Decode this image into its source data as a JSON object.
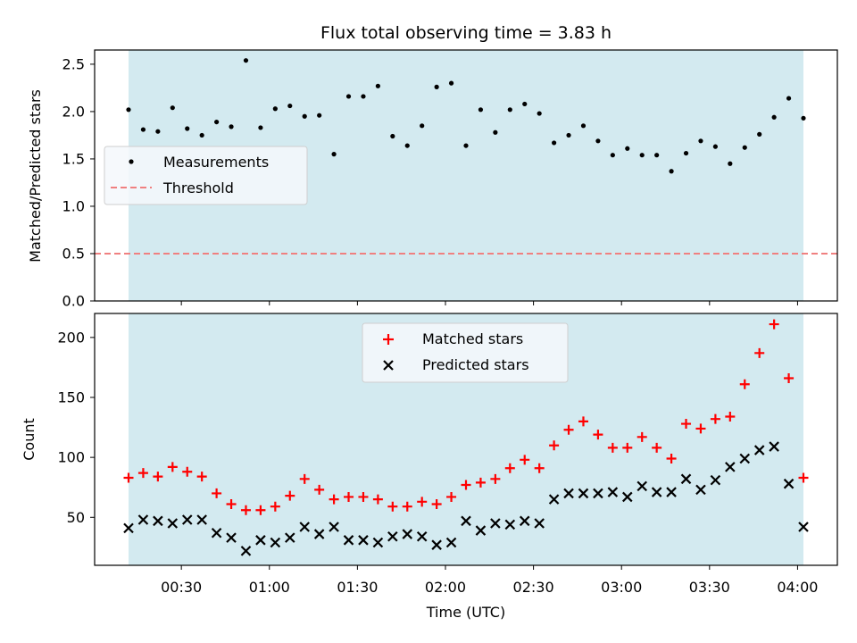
{
  "chart_data": [
    {
      "type": "scatter",
      "title": "Flux total observing time = 3.83 h",
      "ylabel": "Matched/Predicted stars",
      "xlabel": "",
      "ylim": [
        0,
        2.65
      ],
      "yticks": [
        "0.0",
        "0.5",
        "1.0",
        "1.5",
        "2.0",
        "2.5"
      ],
      "grid": false,
      "legend_position": "center-left",
      "observing_window": {
        "start": "00:12",
        "end": "04:02",
        "color": "#d3eaf0"
      },
      "series": [
        {
          "name": "Measurements",
          "color": "#000000",
          "marker": "dot",
          "x": [
            "00:12",
            "00:17",
            "00:22",
            "00:27",
            "00:32",
            "00:37",
            "00:42",
            "00:47",
            "00:52",
            "00:57",
            "01:02",
            "01:07",
            "01:12",
            "01:17",
            "01:22",
            "01:27",
            "01:32",
            "01:37",
            "01:42",
            "01:47",
            "01:52",
            "01:57",
            "02:02",
            "02:07",
            "02:12",
            "02:17",
            "02:22",
            "02:27",
            "02:32",
            "02:37",
            "02:42",
            "02:47",
            "02:52",
            "02:57",
            "03:02",
            "03:07",
            "03:12",
            "03:17",
            "03:22",
            "03:27",
            "03:32",
            "03:37",
            "03:42",
            "03:47",
            "03:52",
            "03:57",
            "04:02"
          ],
          "values": [
            2.02,
            1.81,
            1.79,
            2.04,
            1.82,
            1.75,
            1.89,
            1.84,
            2.54,
            1.83,
            2.03,
            2.06,
            1.95,
            1.96,
            1.55,
            2.16,
            2.16,
            2.27,
            1.74,
            1.64,
            1.85,
            2.26,
            2.3,
            1.64,
            2.02,
            1.78,
            2.02,
            2.08,
            1.98,
            1.67,
            1.75,
            1.85,
            1.69,
            1.54,
            1.61,
            1.54,
            1.54,
            1.37,
            1.56,
            1.69,
            1.63,
            1.45,
            1.62,
            1.76,
            1.94,
            2.14,
            1.93
          ]
        }
      ],
      "threshold": {
        "name": "Threshold",
        "value": 0.5,
        "color": "#f08080",
        "style": "dashed"
      }
    },
    {
      "type": "scatter",
      "title": "",
      "xlabel": "Time (UTC)",
      "ylabel": "Count",
      "ylim": [
        10,
        220
      ],
      "yticks": [
        "50",
        "100",
        "150",
        "200"
      ],
      "xticks": [
        "00:30",
        "01:00",
        "01:30",
        "02:00",
        "02:30",
        "03:00",
        "03:30",
        "04:00"
      ],
      "grid": false,
      "legend_position": "top-center",
      "series": [
        {
          "name": "Matched stars",
          "color": "#ff0000",
          "marker": "plus",
          "x": [
            "00:12",
            "00:17",
            "00:22",
            "00:27",
            "00:32",
            "00:37",
            "00:42",
            "00:47",
            "00:52",
            "00:57",
            "01:02",
            "01:07",
            "01:12",
            "01:17",
            "01:22",
            "01:27",
            "01:32",
            "01:37",
            "01:42",
            "01:47",
            "01:52",
            "01:57",
            "02:02",
            "02:07",
            "02:12",
            "02:17",
            "02:22",
            "02:27",
            "02:32",
            "02:37",
            "02:42",
            "02:47",
            "02:52",
            "02:57",
            "03:02",
            "03:07",
            "03:12",
            "03:17",
            "03:22",
            "03:27",
            "03:32",
            "03:37",
            "03:42",
            "03:47",
            "03:52",
            "03:57",
            "04:02"
          ],
          "values": [
            83,
            87,
            84,
            92,
            88,
            84,
            70,
            61,
            56,
            56,
            59,
            68,
            82,
            73,
            65,
            67,
            67,
            65,
            59,
            59,
            63,
            61,
            67,
            77,
            79,
            82,
            91,
            98,
            91,
            110,
            123,
            130,
            119,
            108,
            108,
            117,
            108,
            99,
            128,
            124,
            132,
            134,
            161,
            187,
            211,
            166,
            83
          ]
        },
        {
          "name": "Predicted stars",
          "color": "#000000",
          "marker": "x",
          "x": [
            "00:12",
            "00:17",
            "00:22",
            "00:27",
            "00:32",
            "00:37",
            "00:42",
            "00:47",
            "00:52",
            "00:57",
            "01:02",
            "01:07",
            "01:12",
            "01:17",
            "01:22",
            "01:27",
            "01:32",
            "01:37",
            "01:42",
            "01:47",
            "01:52",
            "01:57",
            "02:02",
            "02:07",
            "02:12",
            "02:17",
            "02:22",
            "02:27",
            "02:32",
            "02:37",
            "02:42",
            "02:47",
            "02:52",
            "02:57",
            "03:02",
            "03:07",
            "03:12",
            "03:17",
            "03:22",
            "03:27",
            "03:32",
            "03:37",
            "03:42",
            "03:47",
            "03:52",
            "03:57",
            "04:02"
          ],
          "values": [
            41,
            48,
            47,
            45,
            48,
            48,
            37,
            33,
            22,
            31,
            29,
            33,
            42,
            36,
            42,
            31,
            31,
            29,
            34,
            36,
            34,
            27,
            29,
            47,
            39,
            45,
            44,
            47,
            45,
            65,
            70,
            70,
            70,
            71,
            67,
            76,
            71,
            71,
            82,
            73,
            81,
            92,
            99,
            106,
            109,
            78,
            42
          ]
        }
      ]
    }
  ]
}
